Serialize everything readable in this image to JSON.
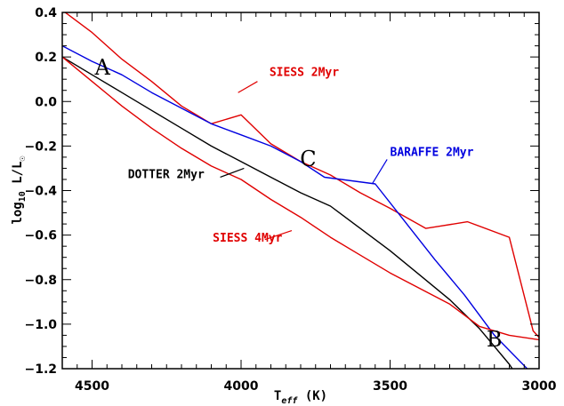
{
  "chart_data": {
    "type": "line",
    "title": "",
    "xlabel": "T_eff (K)",
    "xlabel_main": "T",
    "xlabel_sub": "eff",
    "xlabel_unit": " (K)",
    "ylabel": "log10 L/L☉",
    "ylabel_main": "log",
    "ylabel_sub": "10",
    "ylabel_rest": " L/L",
    "ylabel_sub2": "☉",
    "xlim": [
      4600,
      3000
    ],
    "ylim": [
      -1.2,
      0.4
    ],
    "x_reversed": true,
    "grid": false,
    "x_ticks": [
      4500,
      4000,
      3500,
      3000
    ],
    "x_tick_labels": [
      "4500",
      "4000",
      "3500",
      "3000"
    ],
    "y_ticks": [
      0.4,
      0.2,
      0.0,
      -0.2,
      -0.4,
      -0.6,
      -0.8,
      -1.0,
      -1.2
    ],
    "y_tick_labels": [
      "0.4",
      "0.2",
      "0.0",
      "−0.2",
      "−0.4",
      "−0.6",
      "−0.8",
      "−1.0",
      "−1.2"
    ],
    "colors": {
      "red": "#e00000",
      "blue": "#0000e0",
      "black": "#000000"
    },
    "series": [
      {
        "name": "SIESS 2Myr",
        "color": "#e00000",
        "points": [
          [
            4600,
            0.41
          ],
          [
            4500,
            0.31
          ],
          [
            4400,
            0.19
          ],
          [
            4300,
            0.09
          ],
          [
            4200,
            -0.02
          ],
          [
            4100,
            -0.1
          ],
          [
            4000,
            -0.06
          ],
          [
            3900,
            -0.19
          ],
          [
            3800,
            -0.27
          ],
          [
            3700,
            -0.33
          ],
          [
            3600,
            -0.41
          ],
          [
            3500,
            -0.48
          ],
          [
            3380,
            -0.57
          ],
          [
            3240,
            -0.54
          ],
          [
            3100,
            -0.61
          ],
          [
            3020,
            -1.03
          ],
          [
            3000,
            -1.06
          ]
        ]
      },
      {
        "name": "BARAFFE 2Myr",
        "color": "#0000e0",
        "points": [
          [
            4600,
            0.25
          ],
          [
            4500,
            0.18
          ],
          [
            4400,
            0.12
          ],
          [
            4300,
            0.04
          ],
          [
            4200,
            -0.03
          ],
          [
            4100,
            -0.1
          ],
          [
            4000,
            -0.15
          ],
          [
            3900,
            -0.2
          ],
          [
            3800,
            -0.27
          ],
          [
            3720,
            -0.34
          ],
          [
            3550,
            -0.37
          ],
          [
            3450,
            -0.54
          ],
          [
            3350,
            -0.71
          ],
          [
            3250,
            -0.87
          ],
          [
            3150,
            -1.05
          ],
          [
            3040,
            -1.2
          ]
        ]
      },
      {
        "name": "DOTTER 2Myr",
        "color": "#000000",
        "points": [
          [
            4600,
            0.2
          ],
          [
            4500,
            0.12
          ],
          [
            4400,
            0.04
          ],
          [
            4300,
            -0.04
          ],
          [
            4200,
            -0.12
          ],
          [
            4100,
            -0.2
          ],
          [
            4000,
            -0.27
          ],
          [
            3900,
            -0.34
          ],
          [
            3800,
            -0.41
          ],
          [
            3700,
            -0.47
          ],
          [
            3600,
            -0.57
          ],
          [
            3500,
            -0.67
          ],
          [
            3400,
            -0.78
          ],
          [
            3300,
            -0.89
          ],
          [
            3200,
            -1.02
          ],
          [
            3100,
            -1.18
          ],
          [
            3080,
            -1.22
          ]
        ]
      },
      {
        "name": "SIESS 4Myr",
        "color": "#e00000",
        "points": [
          [
            4600,
            0.2
          ],
          [
            4500,
            0.09
          ],
          [
            4400,
            -0.02
          ],
          [
            4300,
            -0.12
          ],
          [
            4200,
            -0.21
          ],
          [
            4100,
            -0.29
          ],
          [
            4000,
            -0.35
          ],
          [
            3900,
            -0.44
          ],
          [
            3800,
            -0.52
          ],
          [
            3700,
            -0.61
          ],
          [
            3600,
            -0.69
          ],
          [
            3500,
            -0.77
          ],
          [
            3400,
            -0.84
          ],
          [
            3300,
            -0.91
          ],
          [
            3200,
            -1.01
          ],
          [
            3100,
            -1.05
          ],
          [
            3000,
            -1.07
          ]
        ]
      }
    ],
    "annotations": [
      {
        "text": "SIESS 2Myr",
        "color": "#e00000",
        "x": 3905,
        "y": 0.115,
        "pointer": [
          [
            3945,
            0.09
          ],
          [
            4010,
            0.04
          ]
        ]
      },
      {
        "text": "BARAFFE 2Myr",
        "color": "#0000e0",
        "x": 3500,
        "y": -0.245,
        "pointer": [
          [
            3510,
            -0.26
          ],
          [
            3560,
            -0.37
          ]
        ]
      },
      {
        "text": "DOTTER 2Myr",
        "color": "#000000",
        "x": 4380,
        "y": -0.345,
        "pointer": [
          [
            4070,
            -0.34
          ],
          [
            3990,
            -0.3
          ]
        ]
      },
      {
        "text": "SIESS 4Myr",
        "color": "#e00000",
        "x": 4095,
        "y": -0.63,
        "pointer": [
          [
            3920,
            -0.62
          ],
          [
            3830,
            -0.58
          ]
        ]
      }
    ],
    "point_labels": [
      {
        "text": "A",
        "x": 4465,
        "y": 0.12
      },
      {
        "text": "C",
        "x": 3775,
        "y": -0.29
      },
      {
        "text": "B",
        "x": 3150,
        "y": -1.1
      }
    ]
  }
}
